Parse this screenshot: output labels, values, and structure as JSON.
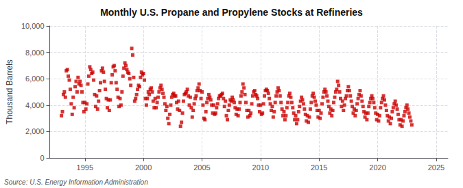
{
  "chart_data": {
    "type": "scatter",
    "title": "Monthly U.S. Propane and Propylene Stocks at Refineries",
    "ylabel": "Thousand Barrels",
    "annotations": [
      "Source: U.S. Energy Information Administration"
    ],
    "color": "#cc0000",
    "marker": "square",
    "grid": true,
    "xlim": [
      1992.0,
      2026.0
    ],
    "xticks": [
      1995,
      2000,
      2005,
      2010,
      2015,
      2020,
      2025
    ],
    "ylim": [
      0,
      10000
    ],
    "yticks": [
      0,
      {
        "value": 2000,
        "label": "2,000"
      },
      {
        "value": 4000,
        "label": "4,000"
      },
      {
        "value": 6000,
        "label": "6,000"
      },
      {
        "value": 8000,
        "label": "8,000"
      },
      {
        "value": 10000,
        "label": "10,000"
      }
    ],
    "x": [
      1993.0,
      1993.083,
      1993.167,
      1993.25,
      1993.333,
      1993.417,
      1993.5,
      1993.583,
      1993.667,
      1993.75,
      1993.833,
      1993.917,
      1994.0,
      1994.083,
      1994.167,
      1994.25,
      1994.333,
      1994.417,
      1994.5,
      1994.583,
      1994.667,
      1994.75,
      1994.833,
      1994.917,
      1995.0,
      1995.083,
      1995.167,
      1995.25,
      1995.333,
      1995.417,
      1995.5,
      1995.583,
      1995.667,
      1995.75,
      1995.833,
      1995.917,
      1996.0,
      1996.083,
      1996.167,
      1996.25,
      1996.333,
      1996.417,
      1996.5,
      1996.583,
      1996.667,
      1996.75,
      1996.833,
      1996.917,
      1997.0,
      1997.083,
      1997.167,
      1997.25,
      1997.333,
      1997.417,
      1997.5,
      1997.583,
      1997.667,
      1997.75,
      1997.833,
      1997.917,
      1998.0,
      1998.083,
      1998.167,
      1998.25,
      1998.333,
      1998.417,
      1998.5,
      1998.583,
      1998.667,
      1998.75,
      1998.833,
      1998.917,
      1999.0,
      1999.083,
      1999.167,
      1999.25,
      1999.333,
      1999.417,
      1999.5,
      1999.583,
      1999.667,
      1999.75,
      1999.833,
      1999.917,
      2000.0,
      2000.083,
      2000.167,
      2000.25,
      2000.333,
      2000.417,
      2000.5,
      2000.583,
      2000.667,
      2000.75,
      2000.833,
      2000.917,
      2001.0,
      2001.083,
      2001.167,
      2001.25,
      2001.333,
      2001.417,
      2001.5,
      2001.583,
      2001.667,
      2001.75,
      2001.833,
      2001.917,
      2002.0,
      2002.083,
      2002.167,
      2002.25,
      2002.333,
      2002.417,
      2002.5,
      2002.583,
      2002.667,
      2002.75,
      2002.833,
      2002.917,
      2003.0,
      2003.083,
      2003.167,
      2003.25,
      2003.333,
      2003.417,
      2003.5,
      2003.583,
      2003.667,
      2003.75,
      2003.833,
      2003.917,
      2004.0,
      2004.083,
      2004.167,
      2004.25,
      2004.333,
      2004.417,
      2004.5,
      2004.583,
      2004.667,
      2004.75,
      2004.833,
      2004.917,
      2005.0,
      2005.083,
      2005.167,
      2005.25,
      2005.333,
      2005.417,
      2005.5,
      2005.583,
      2005.667,
      2005.75,
      2005.833,
      2005.917,
      2006.0,
      2006.083,
      2006.167,
      2006.25,
      2006.333,
      2006.417,
      2006.5,
      2006.583,
      2006.667,
      2006.75,
      2006.833,
      2006.917,
      2007.0,
      2007.083,
      2007.167,
      2007.25,
      2007.333,
      2007.417,
      2007.5,
      2007.583,
      2007.667,
      2007.75,
      2007.833,
      2007.917,
      2008.0,
      2008.083,
      2008.167,
      2008.25,
      2008.333,
      2008.417,
      2008.5,
      2008.583,
      2008.667,
      2008.75,
      2008.833,
      2008.917,
      2009.0,
      2009.083,
      2009.167,
      2009.25,
      2009.333,
      2009.417,
      2009.5,
      2009.583,
      2009.667,
      2009.75,
      2009.833,
      2009.917,
      2010.0,
      2010.083,
      2010.167,
      2010.25,
      2010.333,
      2010.417,
      2010.5,
      2010.583,
      2010.667,
      2010.75,
      2010.833,
      2010.917,
      2011.0,
      2011.083,
      2011.167,
      2011.25,
      2011.333,
      2011.417,
      2011.5,
      2011.583,
      2011.667,
      2011.75,
      2011.833,
      2011.917,
      2012.0,
      2012.083,
      2012.167,
      2012.25,
      2012.333,
      2012.417,
      2012.5,
      2012.583,
      2012.667,
      2012.75,
      2012.833,
      2012.917,
      2013.0,
      2013.083,
      2013.167,
      2013.25,
      2013.333,
      2013.417,
      2013.5,
      2013.583,
      2013.667,
      2013.75,
      2013.833,
      2013.917,
      2014.0,
      2014.083,
      2014.167,
      2014.25,
      2014.333,
      2014.417,
      2014.5,
      2014.583,
      2014.667,
      2014.75,
      2014.833,
      2014.917,
      2015.0,
      2015.083,
      2015.167,
      2015.25,
      2015.333,
      2015.417,
      2015.5,
      2015.583,
      2015.667,
      2015.75,
      2015.833,
      2015.917,
      2016.0,
      2016.083,
      2016.167,
      2016.25,
      2016.333,
      2016.417,
      2016.5,
      2016.583,
      2016.667,
      2016.75,
      2016.833,
      2016.917,
      2017.0,
      2017.083,
      2017.167,
      2017.25,
      2017.333,
      2017.417,
      2017.5,
      2017.583,
      2017.667,
      2017.75,
      2017.833,
      2017.917,
      2018.0,
      2018.083,
      2018.167,
      2018.25,
      2018.333,
      2018.417,
      2018.5,
      2018.583,
      2018.667,
      2018.75,
      2018.833,
      2018.917,
      2019.0,
      2019.083,
      2019.167,
      2019.25,
      2019.333,
      2019.417,
      2019.5,
      2019.583,
      2019.667,
      2019.75,
      2019.833,
      2019.917,
      2020.0,
      2020.083,
      2020.167,
      2020.25,
      2020.333,
      2020.417,
      2020.5,
      2020.583,
      2020.667,
      2020.75,
      2020.833,
      2020.917,
      2021.0,
      2021.083,
      2021.167,
      2021.25,
      2021.333,
      2021.417,
      2021.5,
      2021.583,
      2021.667,
      2021.75,
      2021.833,
      2021.917,
      2022.0,
      2022.083,
      2022.167,
      2022.25,
      2022.333,
      2022.417,
      2022.5,
      2022.583,
      2022.667,
      2022.75,
      2022.833,
      2022.917
    ],
    "values": [
      3200,
      3500,
      4800,
      5000,
      4600,
      6600,
      6700,
      6200,
      5900,
      5200,
      4100,
      3300,
      4600,
      3800,
      5400,
      5800,
      5000,
      6100,
      5600,
      5800,
      5500,
      5000,
      4200,
      3500,
      4200,
      3700,
      4100,
      5600,
      6200,
      6900,
      6700,
      6400,
      6500,
      5900,
      4800,
      3900,
      4700,
      3700,
      4300,
      5100,
      5700,
      6600,
      6800,
      6500,
      5800,
      5200,
      4500,
      3800,
      4400,
      3600,
      4400,
      5700,
      6300,
      6900,
      7000,
      6600,
      5700,
      5200,
      4600,
      3900,
      4500,
      4000,
      5000,
      6200,
      6800,
      7200,
      7000,
      6700,
      6500,
      6400,
      6000,
      5500,
      8300,
      7800,
      6100,
      4300,
      4500,
      4800,
      5200,
      5500,
      5400,
      6100,
      6500,
      6300,
      6400,
      5900,
      4500,
      4000,
      4500,
      5000,
      4800,
      5200,
      5300,
      5000,
      4300,
      3800,
      4500,
      3800,
      4200,
      4600,
      5000,
      5300,
      5500,
      5200,
      4900,
      4600,
      4100,
      3600,
      3900,
      3000,
      2600,
      3300,
      4000,
      4600,
      4800,
      4900,
      4700,
      4700,
      4200,
      3700,
      4300,
      3600,
      2400,
      2700,
      3400,
      4300,
      4800,
      4900,
      5000,
      5200,
      4700,
      4000,
      4600,
      3800,
      3100,
      3600,
      4100,
      4500,
      4700,
      5100,
      5300,
      5600,
      5100,
      4500,
      5000,
      4000,
      3000,
      2900,
      3500,
      4200,
      4500,
      4800,
      4600,
      4400,
      4000,
      3400,
      4000,
      3300,
      3400,
      3800,
      4100,
      4500,
      4700,
      4700,
      4800,
      4900,
      4500,
      3900,
      4300,
      3200,
      2900,
      3600,
      4000,
      4400,
      4300,
      4600,
      4400,
      4200,
      3800,
      3300,
      3700,
      3200,
      3700,
      4200,
      4700,
      5000,
      5600,
      5300,
      4800,
      4200,
      3600,
      3100,
      3600,
      3200,
      3400,
      4100,
      4700,
      5000,
      5100,
      4800,
      4700,
      4500,
      4000,
      3500,
      4000,
      3300,
      3400,
      4100,
      4700,
      5100,
      5200,
      5100,
      4900,
      4500,
      4100,
      3600,
      3900,
      3100,
      3500,
      4200,
      4700,
      5000,
      5300,
      5100,
      4700,
      4200,
      3700,
      3200,
      3500,
      2900,
      3200,
      3800,
      4200,
      4700,
      4900,
      4600,
      4200,
      3800,
      3400,
      2900,
      3200,
      2600,
      2900,
      3500,
      3900,
      4300,
      4600,
      4400,
      4100,
      3700,
      3300,
      2800,
      3200,
      2700,
      3100,
      3700,
      4200,
      4700,
      4900,
      4600,
      4300,
      4000,
      3600,
      3100,
      3600,
      3000,
      3400,
      4100,
      4600,
      5000,
      5200,
      5000,
      4700,
      4300,
      3900,
      3400,
      3700,
      3200,
      3600,
      4200,
      4600,
      5000,
      5200,
      5800,
      5500,
      5000,
      4500,
      3900,
      4300,
      3600,
      4000,
      4500,
      4700,
      5100,
      5400,
      5100,
      4700,
      4300,
      3900,
      3400,
      3700,
      3200,
      3600,
      4100,
      4500,
      4800,
      5100,
      4700,
      4300,
      3900,
      3500,
      3100,
      3400,
      2900,
      3400,
      3900,
      4200,
      4500,
      4700,
      4500,
      4200,
      3800,
      3400,
      2900,
      3300,
      2800,
      3200,
      3800,
      4200,
      4500,
      4700,
      4400,
      4000,
      3600,
      3200,
      2800,
      3100,
      2600,
      3000,
      3500,
      3800,
      4100,
      4300,
      4000,
      3700,
      3300,
      2900,
      2500,
      2900,
      2400,
      2800,
      3200,
      3500,
      3800,
      4000,
      3700,
      3400,
      3100,
      2800,
      2500
    ]
  }
}
